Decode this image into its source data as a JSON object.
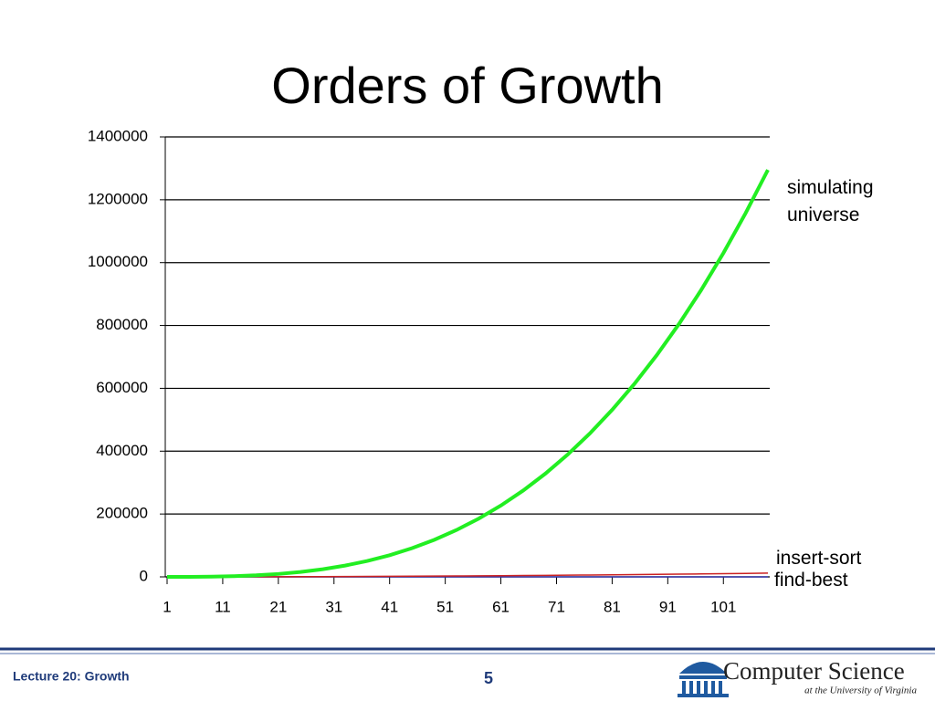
{
  "chart_data": {
    "type": "line",
    "title": "Orders of Growth",
    "x": [
      1,
      5,
      9,
      13,
      17,
      21,
      25,
      29,
      33,
      37,
      41,
      45,
      49,
      53,
      57,
      61,
      65,
      69,
      73,
      77,
      81,
      85,
      89,
      93,
      97,
      101,
      105,
      109
    ],
    "xlim": [
      1,
      109
    ],
    "xticks": [
      1,
      11,
      21,
      31,
      41,
      51,
      61,
      71,
      81,
      91,
      101
    ],
    "ylim": [
      0,
      1400000
    ],
    "yticks": [
      0,
      200000,
      400000,
      600000,
      800000,
      1000000,
      1200000,
      1400000
    ],
    "grid": true,
    "series": [
      {
        "name": "simulating universe",
        "color": "#22ee22",
        "values": [
          1,
          125,
          729,
          2197,
          4913,
          9261,
          15625,
          24389,
          35937,
          50653,
          68921,
          91125,
          117649,
          148877,
          185193,
          226981,
          274625,
          328509,
          389017,
          456533,
          531441,
          614125,
          704969,
          804357,
          912673,
          1030301,
          1157625,
          1295029
        ]
      },
      {
        "name": "insert-sort",
        "color": "#cc2222",
        "values": [
          1,
          25,
          81,
          169,
          289,
          441,
          625,
          841,
          1089,
          1369,
          1681,
          2025,
          2401,
          2809,
          3249,
          3721,
          4225,
          4761,
          5329,
          5929,
          6561,
          7225,
          7921,
          8649,
          9409,
          10201,
          11025,
          11881
        ]
      },
      {
        "name": "find-best",
        "color": "#3333aa",
        "values": [
          1,
          5,
          9,
          13,
          17,
          21,
          25,
          29,
          33,
          37,
          41,
          45,
          49,
          53,
          57,
          61,
          65,
          69,
          73,
          77,
          81,
          85,
          89,
          93,
          97,
          101,
          105,
          109
        ]
      }
    ]
  },
  "footer": {
    "lecture": "Lecture 20: Growth",
    "page": "5",
    "logo_title": "Computer Science",
    "logo_subtitle": "at the University of Virginia"
  }
}
